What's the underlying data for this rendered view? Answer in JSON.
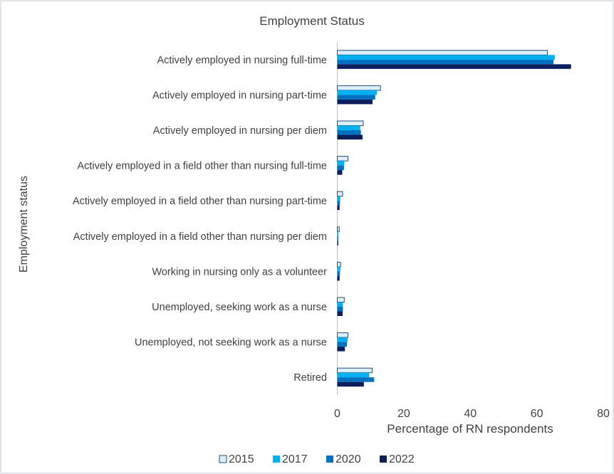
{
  "chart_data": {
    "type": "bar",
    "orientation": "horizontal",
    "title": "Employment Status",
    "xlabel": "Percentage of RN respondents",
    "ylabel": "Employment status",
    "xlim": [
      0,
      80
    ],
    "xticks": [
      0,
      20,
      40,
      60,
      80
    ],
    "grid": false,
    "legend_position": "bottom",
    "categories": [
      "Actively employed in nursing full-time",
      "Actively employed in nursing part-time",
      "Actively employed in nursing per diem",
      "Actively employed in a field other than nursing full-time",
      "Actively employed in a field other than nursing part-time",
      "Actively employed in a field other than nursing per diem",
      "Working in nursing only as a volunteer",
      "Unemployed, seeking work as a nurse",
      "Unemployed, not seeking work as a nurse",
      "Retired"
    ],
    "series": [
      {
        "name": "2015",
        "color": "#dbeef9",
        "stroke": "#1f4e79",
        "values": [
          63.2,
          13.0,
          7.8,
          3.2,
          1.6,
          0.6,
          1.0,
          2.1,
          3.2,
          10.5
        ]
      },
      {
        "name": "2017",
        "color": "#00b0f0",
        "values": [
          65.4,
          11.9,
          6.9,
          2.1,
          0.9,
          0.3,
          0.9,
          1.7,
          3.1,
          9.6
        ]
      },
      {
        "name": "2020",
        "color": "#0070c0",
        "values": [
          65.0,
          11.4,
          7.1,
          2.0,
          0.8,
          0.3,
          0.8,
          1.7,
          2.9,
          11.1
        ]
      },
      {
        "name": "2022",
        "color": "#0a1f5c",
        "values": [
          70.3,
          10.6,
          7.6,
          1.5,
          0.7,
          0.3,
          0.7,
          1.6,
          2.3,
          8.0
        ]
      }
    ]
  }
}
